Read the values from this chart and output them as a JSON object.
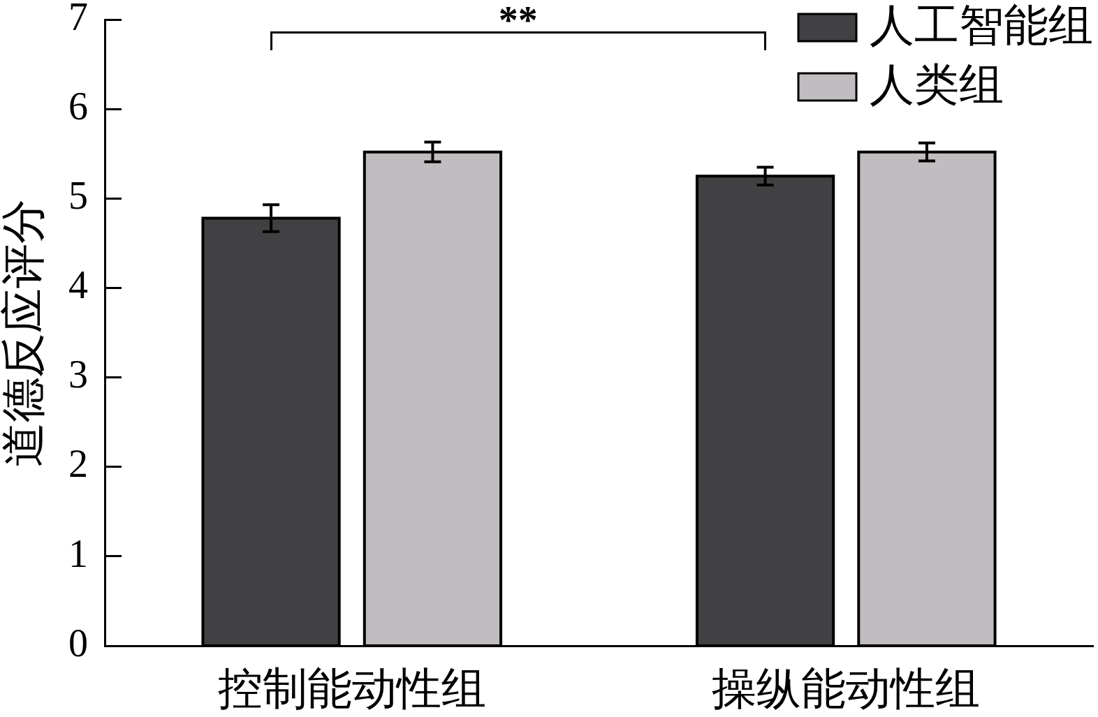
{
  "chart_data": {
    "type": "bar",
    "ylabel": "道德反应评分",
    "categories": [
      "控制能动性组",
      "操纵能动性组"
    ],
    "series": [
      {
        "name": "人工智能组",
        "color": "#414042",
        "values": [
          4.78,
          5.25
        ],
        "errors": [
          0.15,
          0.1
        ]
      },
      {
        "name": "人类组",
        "color": "#c1bcc0",
        "values": [
          5.52,
          5.52
        ],
        "errors": [
          0.11,
          0.1
        ]
      }
    ],
    "ylim": [
      0,
      7
    ],
    "yticks": [
      0,
      1,
      2,
      3,
      4,
      5,
      6,
      7
    ],
    "legend": "top right",
    "annotations": [
      "**"
    ]
  }
}
